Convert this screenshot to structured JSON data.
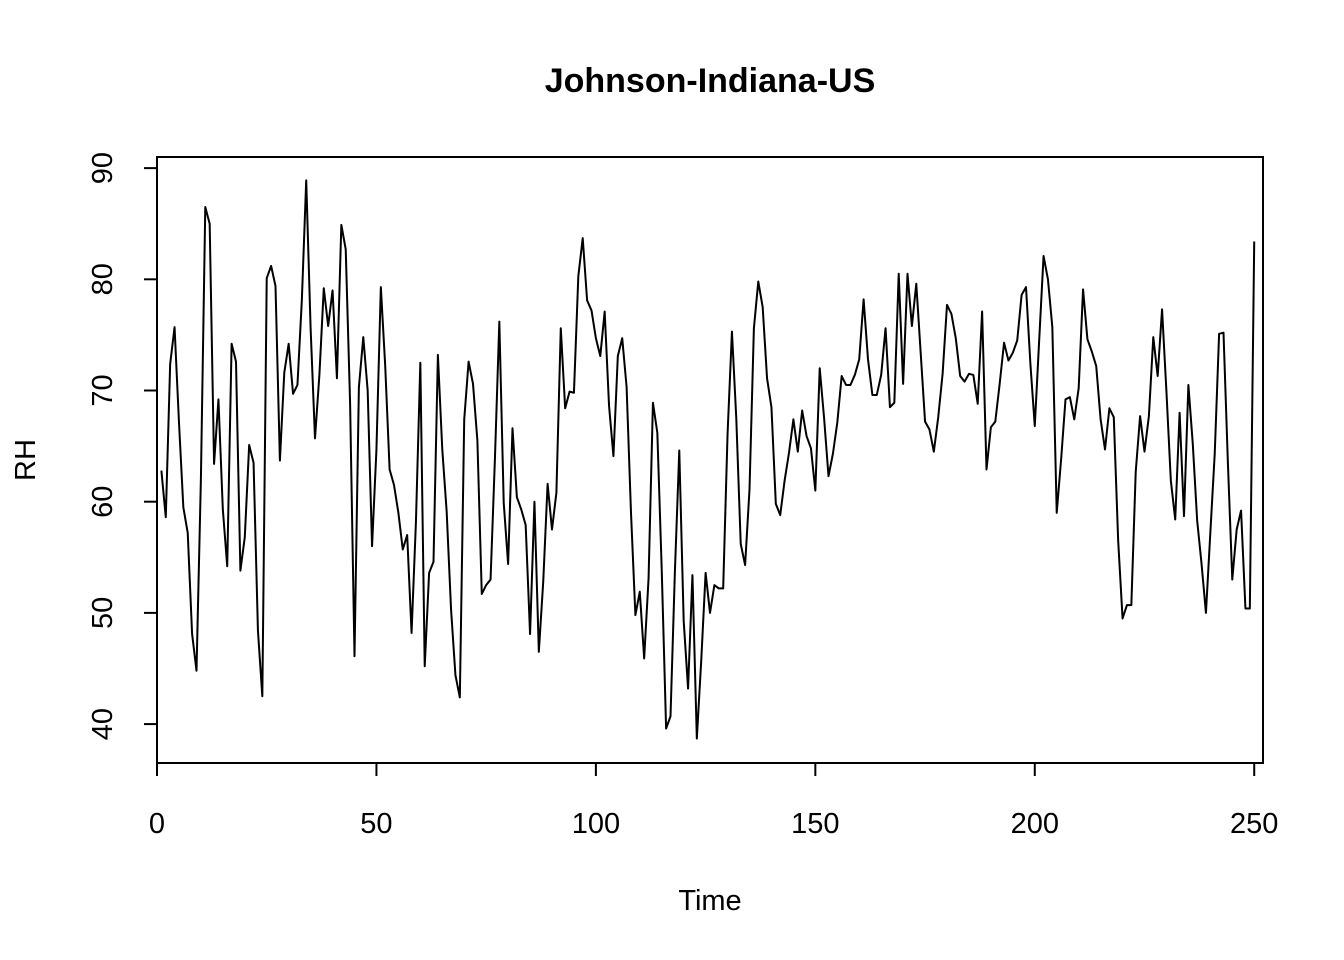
{
  "chart_data": {
    "type": "line",
    "title": "Johnson-Indiana-US",
    "xlabel": "Time",
    "ylabel": "RH",
    "xlim": [
      0,
      252
    ],
    "ylim": [
      36.5,
      91
    ],
    "x_ticks": [
      0,
      50,
      100,
      150,
      200,
      250
    ],
    "y_ticks": [
      40,
      50,
      60,
      70,
      80,
      90
    ],
    "grid": false,
    "line_color": "#000000",
    "series": [
      {
        "values": [
          62.8,
          58.6,
          72.4,
          75.7,
          67.2,
          59.5,
          57.2,
          48.1,
          44.8,
          62,
          86.5,
          85,
          63.4,
          69.2,
          59.3,
          54.2,
          74.2,
          72.6,
          53.8,
          56.8,
          65.1,
          63.5,
          48.4,
          42.5,
          80.1,
          81.2,
          79.4,
          63.7,
          71.6,
          74.2,
          69.7,
          70.5,
          78.1,
          88.9,
          75.6,
          65.7,
          71.4,
          79.2,
          75.8,
          79,
          71.1,
          84.9,
          82.7,
          68.8,
          46.1,
          70.3,
          74.8,
          70,
          56,
          64.7,
          79.3,
          72.2,
          62.9,
          61.5,
          59,
          55.7,
          57,
          48.2,
          58.2,
          72.5,
          45.2,
          53.6,
          54.6,
          73.2,
          64.7,
          59.1,
          50.3,
          44.4,
          42.4,
          67.4,
          72.6,
          70.6,
          65.5,
          51.7,
          52.5,
          53,
          63.9,
          76.2,
          59.9,
          54.4,
          66.6,
          60.4,
          59.3,
          57.9,
          48.1,
          60,
          46.5,
          52.8,
          61.6,
          57.5,
          60.8,
          75.6,
          68.4,
          69.9,
          69.8,
          80.3,
          83.7,
          78.1,
          77.2,
          74.7,
          73.1,
          77.1,
          68.6,
          64.1,
          73.1,
          74.7,
          70.3,
          59,
          49.8,
          51.9,
          45.9,
          53.1,
          68.9,
          66.2,
          53.9,
          39.6,
          40.7,
          53.7,
          64.6,
          49.3,
          43.2,
          53.4,
          38.7,
          45.7,
          53.6,
          50,
          52.5,
          52.2,
          52.2,
          66.1,
          75.3,
          67.4,
          56.2,
          54.3,
          61.1,
          75.6,
          79.8,
          77.5,
          71.1,
          68.5,
          59.8,
          58.8,
          61.9,
          64.4,
          67.4,
          64.5,
          68.2,
          65.9,
          64.8,
          61,
          72,
          67.5,
          62.3,
          64.3,
          67.1,
          71.3,
          70.5,
          70.5,
          71.4,
          72.8,
          78.2,
          72.8,
          69.6,
          69.6,
          71.4,
          75.6,
          68.5,
          68.9,
          80.5,
          70.6,
          80.5,
          75.8,
          79.6,
          73.4,
          67.2,
          66.5,
          64.5,
          67.6,
          71.5,
          77.7,
          76.9,
          74.7,
          71.3,
          70.8,
          71.5,
          71.4,
          68.8,
          77.1,
          62.9,
          66.7,
          67.2,
          70.6,
          74.3,
          72.7,
          73.4,
          74.5,
          78.6,
          79.3,
          72.4,
          66.8,
          74.5,
          82.1,
          80,
          75.7,
          59,
          63.8,
          69.2,
          69.4,
          67.4,
          70.2,
          79.1,
          74.6,
          73.5,
          72.2,
          67.4,
          64.7,
          68.4,
          67.6,
          56.5,
          49.5,
          50.7,
          50.7,
          62.7,
          67.7,
          64.5,
          67.7,
          74.8,
          71.3,
          77.3,
          69.9,
          61.9,
          58.4,
          68,
          58.7,
          70.5,
          65.2,
          58.3,
          54.4,
          50,
          57.2,
          64.3,
          75.1,
          75.2,
          63.5,
          53,
          57.5,
          59.2,
          50.4,
          50.4,
          83.4
        ]
      }
    ]
  }
}
